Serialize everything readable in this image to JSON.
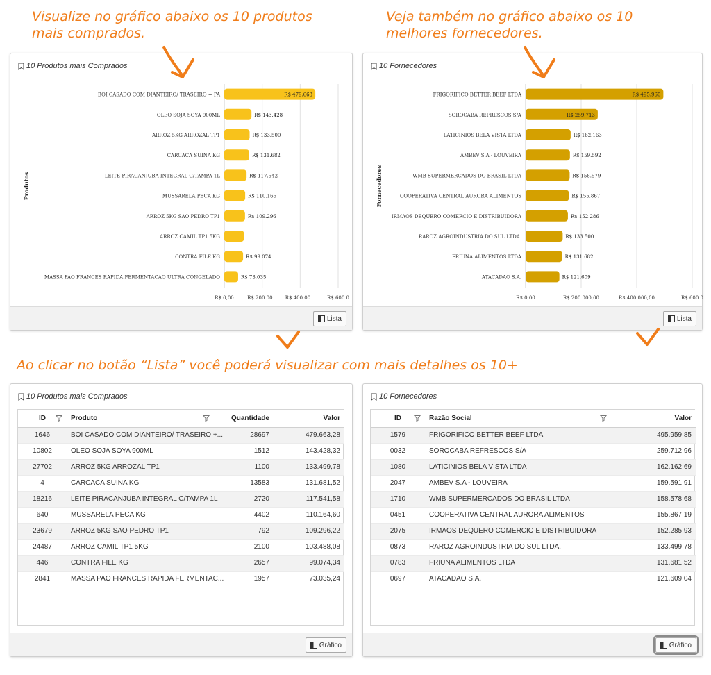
{
  "captions": {
    "top_left": [
      "Visualize no gráfico abaixo os 10 produtos",
      "mais comprados."
    ],
    "top_right": [
      "Veja também no gráfico abaixo os 10",
      "melhores fornecedores."
    ],
    "middle": "Ao clicar no botão “Lista” você poderá visualizar com mais detalhes os 10+"
  },
  "colors": {
    "accent": "#f07d1a",
    "produtos_bar": "#f8c21b",
    "fornecedores_bar": "#d4a000"
  },
  "products_chart_panel": {
    "title": "10 Produtos mais Comprados",
    "button_label": "Lista",
    "button_icon": "panel-icon",
    "chart_data": {
      "type": "bar",
      "orientation": "horizontal",
      "ylabel": "Produtos",
      "categories": [
        "BOI CASADO COM DIANTEIRO/ TRASEIRO + PA",
        "OLEO SOJA SOYA 900ML",
        "ARROZ 5KG ARROZAL TP1",
        "CARCACA SUINA KG",
        "LEITE PIRACANJUBA INTEGRAL C/TAMPA 1L",
        "MUSSARELA PECA KG",
        "ARROZ 5KG SAO PEDRO TP1",
        "ARROZ CAMIL TP1 5KG",
        "CONTRA FILE KG",
        "MASSA PAO FRANCES RAPIDA FERMENTACAO ULTRA CONGELADO"
      ],
      "values": [
        479663,
        143428,
        133500,
        131682,
        117542,
        110165,
        109296,
        103488,
        99074,
        73035
      ],
      "data_labels": [
        "R$ 479.663",
        "R$ 143.428",
        "R$ 133.500",
        "R$ 131.682",
        "R$ 117.542",
        "R$ 110.165",
        "R$ 109.296",
        "",
        "R$ 99.074",
        "R$ 73.035"
      ],
      "xlim": [
        0,
        600000
      ],
      "xticks": [
        "R$ 0,00",
        "R$ 200.00...",
        "R$ 400.00...",
        "R$ 600.0"
      ],
      "grid": true
    }
  },
  "suppliers_chart_panel": {
    "title": "10 Fornecedores",
    "button_label": "Lista",
    "button_icon": "panel-icon",
    "chart_data": {
      "type": "bar",
      "orientation": "horizontal",
      "ylabel": "Fornecedores",
      "categories": [
        "FRIGORIFICO BETTER BEEF LTDA",
        "SOROCABA REFRESCOS S/A",
        "LATICINIOS BELA VISTA LTDA",
        "AMBEV S.A - LOUVEIRA",
        "WMB SUPERMERCADOS DO BRASIL LTDA",
        "COOPERATIVA CENTRAL AURORA ALIMENTOS",
        "IRMAOS DEQUERO COMERCIO E DISTRIBUIDORA",
        "RAROZ AGROINDUSTRIA DO SUL LTDA.",
        "FRIUNA ALIMENTOS LTDA",
        "ATACADAO S.A."
      ],
      "values": [
        495960,
        259713,
        162163,
        159592,
        158579,
        155867,
        152286,
        133500,
        131682,
        121609
      ],
      "data_labels": [
        "R$ 495.960",
        "R$ 259.713",
        "R$ 162.163",
        "R$ 159.592",
        "R$ 158.579",
        "R$ 155.867",
        "R$ 152.286",
        "R$ 133.500",
        "R$ 131.682",
        "R$ 121.609"
      ],
      "xlim": [
        0,
        600000
      ],
      "xticks": [
        "R$ 0,00",
        "R$ 200.000,00",
        "R$ 400.000,00",
        "R$ 600.0"
      ],
      "grid": true
    }
  },
  "products_list_panel": {
    "title": "10 Produtos mais Comprados",
    "button_label": "Gráfico",
    "button_icon": "panel-icon",
    "columns": [
      "ID",
      "Produto",
      "Quantidade",
      "Valor"
    ],
    "rows": [
      [
        "1646",
        "BOI CASADO COM DIANTEIRO/ TRASEIRO +...",
        "28697",
        "479.663,28"
      ],
      [
        "10802",
        "OLEO SOJA SOYA 900ML",
        "1512",
        "143.428,32"
      ],
      [
        "27702",
        "ARROZ 5KG ARROZAL TP1",
        "1100",
        "133.499,78"
      ],
      [
        "4",
        "CARCACA SUINA KG",
        "13583",
        "131.681,52"
      ],
      [
        "18216",
        "LEITE PIRACANJUBA INTEGRAL C/TAMPA 1L",
        "2720",
        "117.541,58"
      ],
      [
        "640",
        "MUSSARELA PECA KG",
        "4402",
        "110.164,60"
      ],
      [
        "23679",
        "ARROZ 5KG SAO PEDRO TP1",
        "792",
        "109.296,22"
      ],
      [
        "24487",
        "ARROZ CAMIL TP1 5KG",
        "2100",
        "103.488,08"
      ],
      [
        "446",
        "CONTRA FILE KG",
        "2657",
        "99.074,34"
      ],
      [
        "2841",
        "MASSA PAO FRANCES RAPIDA FERMENTAC...",
        "1957",
        "73.035,24"
      ]
    ]
  },
  "suppliers_list_panel": {
    "title": "10 Fornecedores",
    "button_label": "Gráfico",
    "button_icon": "panel-icon",
    "columns": [
      "ID",
      "Razão Social",
      "Valor"
    ],
    "rows": [
      [
        "1579",
        "FRIGORIFICO BETTER BEEF LTDA",
        "495.959,85"
      ],
      [
        "0032",
        "SOROCABA REFRESCOS S/A",
        "259.712,96"
      ],
      [
        "1080",
        "LATICINIOS BELA VISTA LTDA",
        "162.162,69"
      ],
      [
        "2047",
        "AMBEV S.A - LOUVEIRA",
        "159.591,91"
      ],
      [
        "1710",
        "WMB SUPERMERCADOS DO BRASIL LTDA",
        "158.578,68"
      ],
      [
        "0451",
        "COOPERATIVA CENTRAL AURORA ALIMENTOS",
        "155.867,19"
      ],
      [
        "2075",
        "IRMAOS DEQUERO COMERCIO E DISTRIBUIDORA",
        "152.285,93"
      ],
      [
        "0873",
        "RAROZ AGROINDUSTRIA DO SUL LTDA.",
        "133.499,78"
      ],
      [
        "0783",
        "FRIUNA ALIMENTOS LTDA",
        "131.681,52"
      ],
      [
        "0697",
        "ATACADAO S.A.",
        "121.609,04"
      ]
    ]
  }
}
